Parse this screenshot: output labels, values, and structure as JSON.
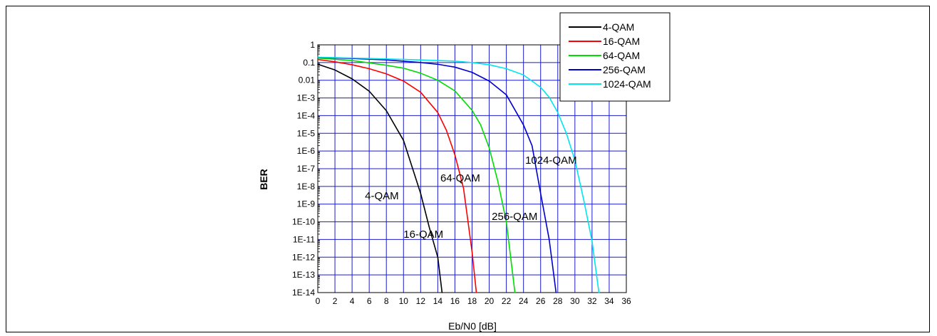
{
  "chart_data": {
    "type": "line",
    "title": "",
    "xlabel": "Eb/N0 [dB]",
    "ylabel": "BER",
    "xlim": [
      0,
      36
    ],
    "ylim": [
      1e-14,
      1
    ],
    "yscale": "log",
    "grid": true,
    "legend_position": "top-right",
    "x_ticks": [
      0,
      2,
      4,
      6,
      8,
      10,
      12,
      14,
      16,
      18,
      20,
      22,
      24,
      26,
      28,
      30,
      32,
      34,
      36
    ],
    "y_ticks": [
      1,
      0.1,
      0.01,
      0.001,
      0.0001,
      1e-05,
      1e-06,
      1e-07,
      1e-08,
      1e-09,
      1e-10,
      1e-11,
      1e-12,
      1e-13,
      1e-14
    ],
    "y_tick_labels": [
      "1",
      "0.1",
      "0.01",
      "1E-3",
      "1E-4",
      "1E-5",
      "1E-6",
      "1E-7",
      "1E-8",
      "1E-9",
      "1E-10",
      "1E-11",
      "1E-12",
      "1E-13",
      "1E-14"
    ],
    "series": [
      {
        "name": "4-QAM",
        "color": "#000000",
        "x": [
          0,
          2,
          4,
          6,
          8,
          10,
          12,
          13,
          14,
          14.5
        ],
        "y": [
          0.08,
          0.038,
          0.012,
          0.0024,
          0.00019,
          4e-06,
          4e-09,
          5e-11,
          1e-12,
          1e-14
        ]
      },
      {
        "name": "16-QAM",
        "color": "#ff0000",
        "x": [
          0,
          2,
          4,
          6,
          8,
          10,
          12,
          14,
          15,
          16,
          17,
          18,
          18.5
        ],
        "y": [
          0.15,
          0.11,
          0.075,
          0.045,
          0.023,
          0.009,
          0.0021,
          0.00015,
          1.5e-05,
          6e-07,
          8e-09,
          2e-12,
          1e-14
        ]
      },
      {
        "name": "64-QAM",
        "color": "#00dd00",
        "x": [
          0,
          4,
          8,
          10,
          12,
          14,
          16,
          18,
          19,
          20,
          21,
          22,
          23
        ],
        "y": [
          0.18,
          0.13,
          0.07,
          0.048,
          0.025,
          0.01,
          0.0025,
          0.0002,
          3e-05,
          1.5e-06,
          2e-08,
          1e-10,
          1e-14
        ]
      },
      {
        "name": "256-QAM",
        "color": "#0000cc",
        "x": [
          0,
          4,
          8,
          12,
          14,
          16,
          18,
          20,
          22,
          24,
          25,
          26,
          27,
          27.8
        ],
        "y": [
          0.19,
          0.17,
          0.14,
          0.1,
          0.08,
          0.055,
          0.028,
          0.009,
          0.0015,
          3e-05,
          2e-06,
          4e-09,
          1e-11,
          1e-14
        ]
      },
      {
        "name": "1024-QAM",
        "color": "#00e5ee",
        "x": [
          0,
          4,
          8,
          12,
          16,
          18,
          20,
          22,
          24,
          26,
          27,
          28,
          29,
          30,
          31,
          32,
          32.8
        ],
        "y": [
          0.2,
          0.18,
          0.16,
          0.14,
          0.12,
          0.1,
          0.075,
          0.045,
          0.02,
          0.004,
          0.0011,
          0.00015,
          1e-05,
          3e-07,
          2e-09,
          8e-12,
          1e-14
        ]
      }
    ],
    "annotations": [
      {
        "text": "4-QAM",
        "x": 5.5,
        "y": 3e-09
      },
      {
        "text": "16-QAM",
        "x": 10,
        "y": 2e-11
      },
      {
        "text": "64-QAM",
        "x": 14.3,
        "y": 3e-08
      },
      {
        "text": "256-QAM",
        "x": 20.3,
        "y": 2e-10
      },
      {
        "text": "1024-QAM",
        "x": 24.2,
        "y": 3e-07
      }
    ]
  }
}
